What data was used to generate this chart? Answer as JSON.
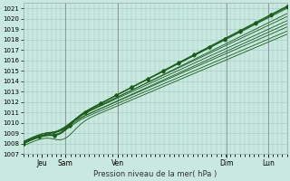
{
  "xlabel": "Pression niveau de la mer( hPa )",
  "ylim": [
    1007,
    1021.5
  ],
  "yticks": [
    1007,
    1008,
    1009,
    1010,
    1011,
    1012,
    1013,
    1014,
    1015,
    1016,
    1017,
    1018,
    1019,
    1020,
    1021
  ],
  "bg_color": "#c8e8e0",
  "grid_color_major": "#a0c8c0",
  "grid_color_minor": "#b8dcd8",
  "line_color": "#1a5c1a",
  "line_color2": "#2a7a2a",
  "figsize": [
    3.2,
    2.0
  ],
  "dpi": 100,
  "xtick_positions": [
    0.07,
    0.16,
    0.36,
    0.77,
    0.93
  ],
  "xtick_labels": [
    "Jeu",
    "Sam",
    "Ven",
    "Dim",
    "Lun"
  ],
  "vline_positions": [
    0.16,
    0.36,
    0.77,
    0.93
  ]
}
